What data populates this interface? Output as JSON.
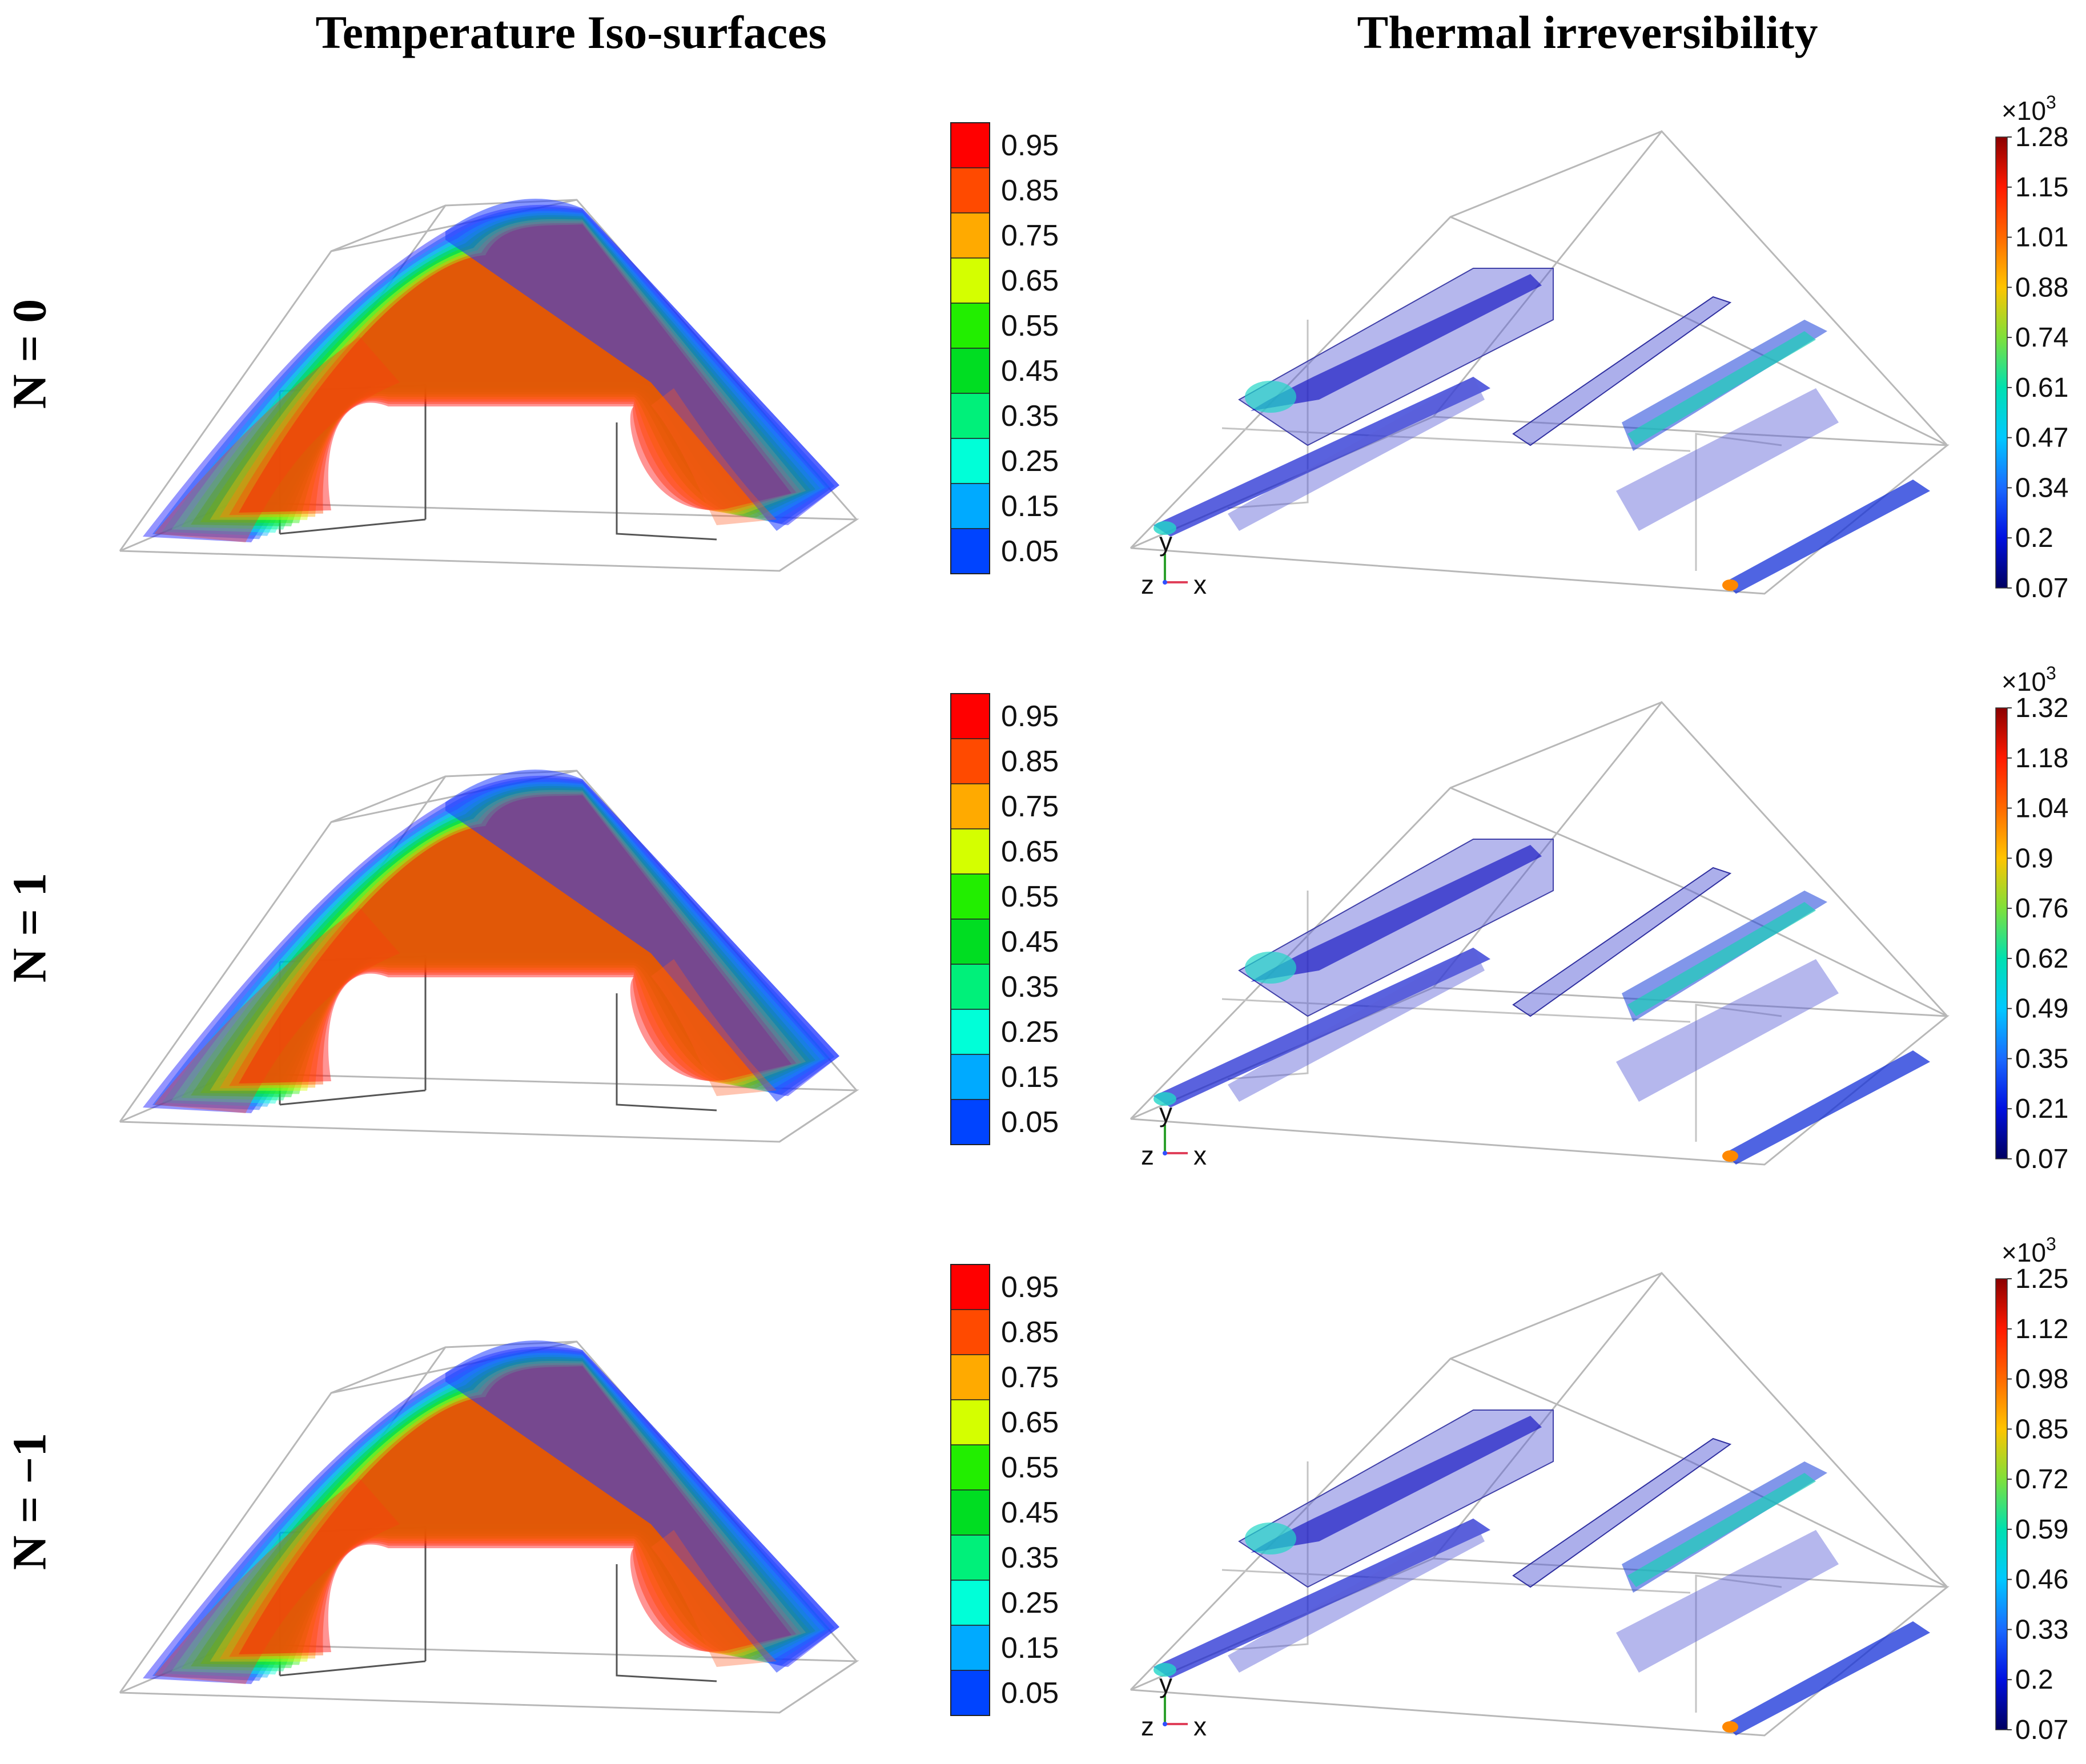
{
  "columns": {
    "left_title": "Temperature Iso-surfaces",
    "right_title": "Thermal irreversibility"
  },
  "rows": [
    {
      "label": "N = 0",
      "temperature_colorbar": {
        "ticks": [
          "0.95",
          "0.85",
          "0.75",
          "0.65",
          "0.55",
          "0.45",
          "0.35",
          "0.25",
          "0.15",
          "0.05"
        ]
      },
      "irreversibility_colorbar": {
        "multiplier": "×10",
        "exponent": "3",
        "ticks": [
          "1.28",
          "1.15",
          "1.01",
          "0.88",
          "0.74",
          "0.61",
          "0.47",
          "0.34",
          "0.2",
          "0.07"
        ]
      },
      "axes": {
        "y": "y",
        "z": "z",
        "x": "x"
      }
    },
    {
      "label": "N = 1",
      "temperature_colorbar": {
        "ticks": [
          "0.95",
          "0.85",
          "0.75",
          "0.65",
          "0.55",
          "0.45",
          "0.35",
          "0.25",
          "0.15",
          "0.05"
        ]
      },
      "irreversibility_colorbar": {
        "multiplier": "×10",
        "exponent": "3",
        "ticks": [
          "1.32",
          "1.18",
          "1.04",
          "0.9",
          "0.76",
          "0.62",
          "0.49",
          "0.35",
          "0.21",
          "0.07"
        ]
      },
      "axes": {
        "y": "y",
        "z": "z",
        "x": "x"
      }
    },
    {
      "label": "N = −1",
      "temperature_colorbar": {
        "ticks": [
          "0.95",
          "0.85",
          "0.75",
          "0.65",
          "0.55",
          "0.45",
          "0.35",
          "0.25",
          "0.15",
          "0.05"
        ]
      },
      "irreversibility_colorbar": {
        "multiplier": "×10",
        "exponent": "3",
        "ticks": [
          "1.25",
          "1.12",
          "0.98",
          "0.85",
          "0.72",
          "0.59",
          "0.46",
          "0.33",
          "0.2",
          "0.07"
        ]
      },
      "axes": {
        "y": "y",
        "z": "z",
        "x": "x"
      }
    }
  ],
  "colors": {
    "temp_scale": [
      "#ff0000",
      "#ff4a00",
      "#ffaa00",
      "#d4ff00",
      "#22ee00",
      "#00dd22",
      "#00f07a",
      "#00ffd8",
      "#00aaff",
      "#0044ff",
      "#0000ff"
    ],
    "irr_scale": [
      "#8b0000",
      "#ff1a00",
      "#ff6a00",
      "#ffc400",
      "#7fe03a",
      "#00e0b0",
      "#00c8ff",
      "#1a6aff",
      "#0010e0",
      "#000060"
    ],
    "iso_blue": "#1f3cff",
    "irr_surface": "#5a5fd8"
  }
}
